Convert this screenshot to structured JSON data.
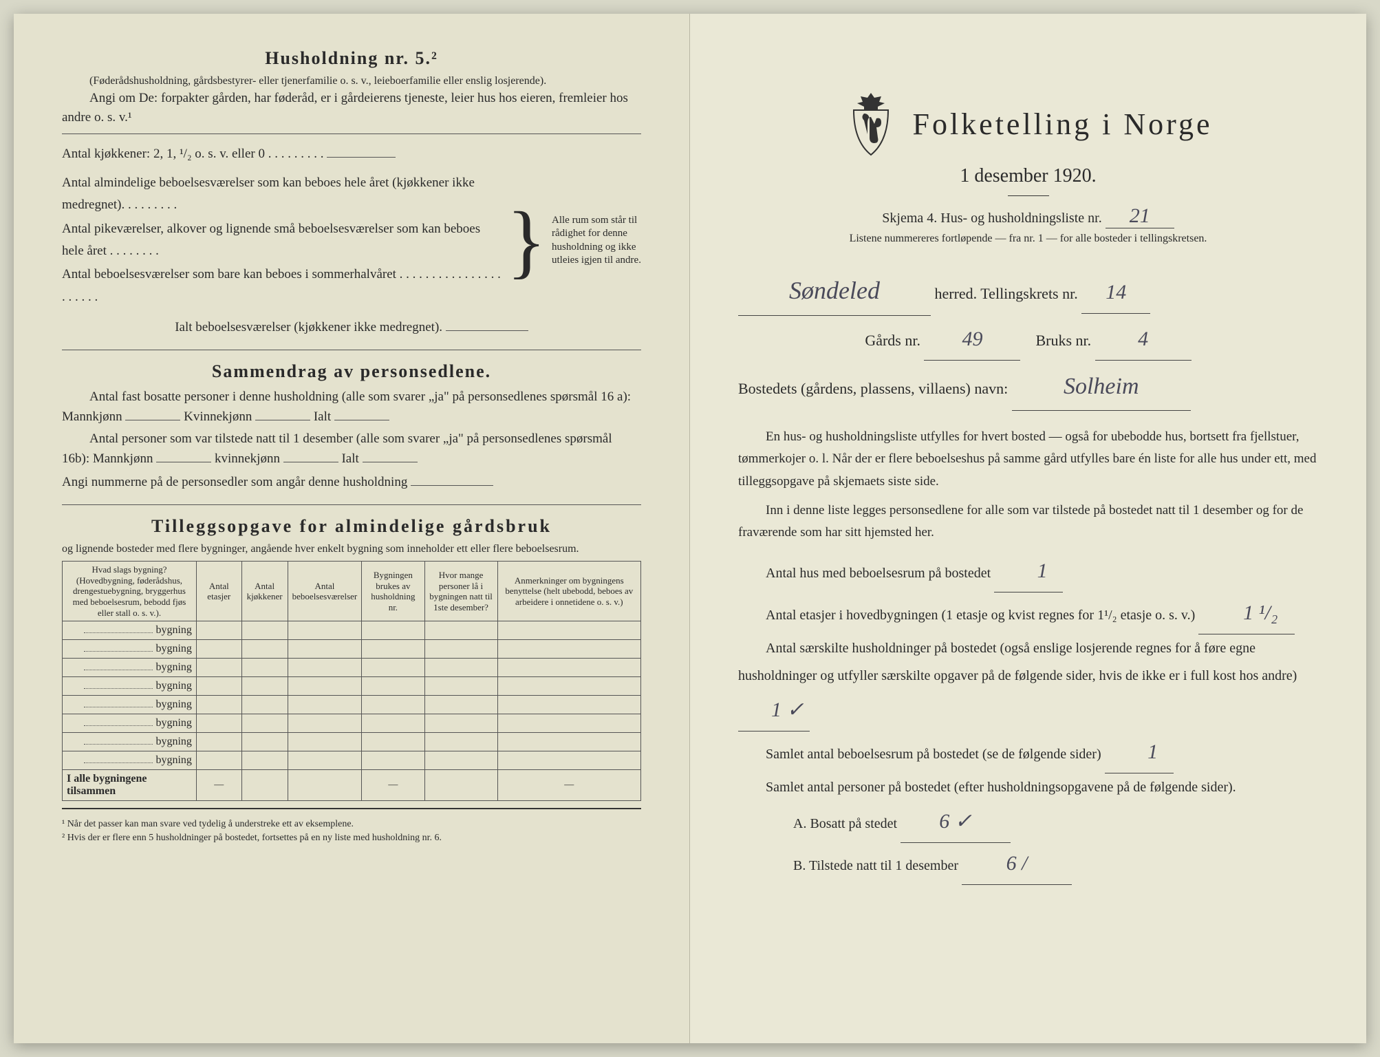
{
  "left": {
    "husholdning_title": "Husholdning nr. 5.²",
    "husholdning_sub": "(Føderådshusholdning, gårdsbestyrer- eller tjenerfamilie o. s. v., leieboerfamilie eller enslig losjerende).",
    "angi_line": "Angi om De: forpakter gården, har føderåd, er i gårdeierens tjeneste, leier hus hos eieren, fremleier hos andre o. s. v.¹",
    "kjokkener_line": "Antal kjøkkener: 2, 1, ¹/₂ o. s. v. eller 0 . . . . . . . . .",
    "brace_lines": [
      "Antal almindelige beboelsesværelser som kan beboes hele året (kjøkkener ikke medregnet). . . . . . . . .",
      "Antal pikeværelser, alkover og lignende små beboelsesværelser som kan beboes hele året . . . . . . . .",
      "Antal beboelsesværelser som bare kan beboes i sommerhalvåret . . . . . . . . . . . . . . . . . . . . . ."
    ],
    "brace_side": "Alle rum som står til rådighet for denne husholdning og ikke utleies igjen til andre.",
    "ialt_line": "Ialt beboelsesværelser (kjøkkener ikke medregnet).",
    "sammendrag_title": "Sammendrag av personsedlene.",
    "sammendrag_p1": "Antal fast bosatte personer i denne husholdning (alle som svarer „ja\" på personsedlenes spørsmål 16 a): Mannkjønn",
    "sammendrag_p1b": "Kvinnekjønn",
    "sammendrag_p1c": "Ialt",
    "sammendrag_p2": "Antal personer som var tilstede natt til 1 desember (alle som svarer „ja\" på personsedlenes spørsmål 16b): Mannkjønn",
    "sammendrag_p2b": "kvinnekjønn",
    "sammendrag_p2c": "Ialt",
    "sammendrag_p3": "Angi nummerne på de personsedler som angår denne husholdning",
    "tillegg_title": "Tilleggsopgave for almindelige gårdsbruk",
    "tillegg_sub": "og lignende bosteder med flere bygninger, angående hver enkelt bygning som inneholder ett eller flere beboelsesrum.",
    "table_headers": [
      "Hvad slags bygning?\n(Hovedbygning, føderådshus, drengestuebygning, bryggerhus med beboelsesrum, bebodd fjøs eller stall o. s. v.).",
      "Antal etasjer",
      "Antal kjøkkener",
      "Antal beboelsesværelser",
      "Bygningen brukes av husholdning nr.",
      "Hvor mange personer lå i bygningen natt til 1ste desember?",
      "Anmerkninger om bygningens benyttelse (helt ubebodd, beboes av arbeidere i onnetidene o. s. v.)"
    ],
    "bygning_label": "bygning",
    "row_count": 8,
    "total_row": "I alle bygningene tilsammen",
    "footnote1": "¹ Når det passer kan man svare ved tydelig å understreke ett av eksemplene.",
    "footnote2": "² Hvis der er flere enn 5 husholdninger på bostedet, fortsettes på en ny liste med husholdning nr. 6."
  },
  "right": {
    "main_title": "Folketelling i Norge",
    "subtitle": "1 desember 1920.",
    "skjema": "Skjema 4.  Hus- og husholdningsliste nr.",
    "skjema_nr": "21",
    "listene": "Listene nummereres fortløpende — fra nr. 1 — for alle bosteder i tellingskretsen.",
    "herred_value": "Søndeled",
    "herred_label": "herred.  Tellingskrets nr.",
    "krets_nr": "14",
    "gards_label": "Gårds nr.",
    "gards_nr": "49",
    "bruks_label": "Bruks nr.",
    "bruks_nr": "4",
    "bosted_label": "Bostedets (gårdens, plassens, villaens) navn:",
    "bosted_value": "Solheim",
    "para1": "En hus- og husholdningsliste utfylles for hvert bosted — også for ubebodde hus, bortsett fra fjellstuer, tømmerkojer o. l. Når der er flere beboelseshus på samme gård utfylles bare én liste for alle hus under ett, med tilleggsopgave på skjemaets siste side.",
    "para2": "Inn i denne liste legges personsedlene for alle som var tilstede på bostedet natt til 1 desember og for de fraværende som har sitt hjemsted her.",
    "antal_hus_label": "Antal hus med beboelsesrum på bostedet",
    "antal_hus_value": "1",
    "antal_etasjer_label": "Antal etasjer i hovedbygningen (1 etasje og kvist regnes for 1¹/₂ etasje o. s. v.)",
    "antal_etasjer_value": "1 ¹/₂",
    "saerskilte_label": "Antal særskilte husholdninger på bostedet (også enslige losjerende regnes for å føre egne husholdninger og utfyller særskilte opgaver på de følgende sider, hvis de ikke er i full kost hos andre)",
    "saerskilte_value": "1 ✓",
    "samlet_rum_label": "Samlet antal beboelsesrum på bostedet (se de følgende sider)",
    "samlet_rum_value": "1",
    "samlet_pers_label": "Samlet antal personer på bostedet (efter husholdningsopgavene på de følgende sider).",
    "a_label": "A.  Bosatt på stedet",
    "a_value": "6 ✓",
    "b_label": "B.  Tilstede natt til 1 desember",
    "b_value": "6 /"
  }
}
